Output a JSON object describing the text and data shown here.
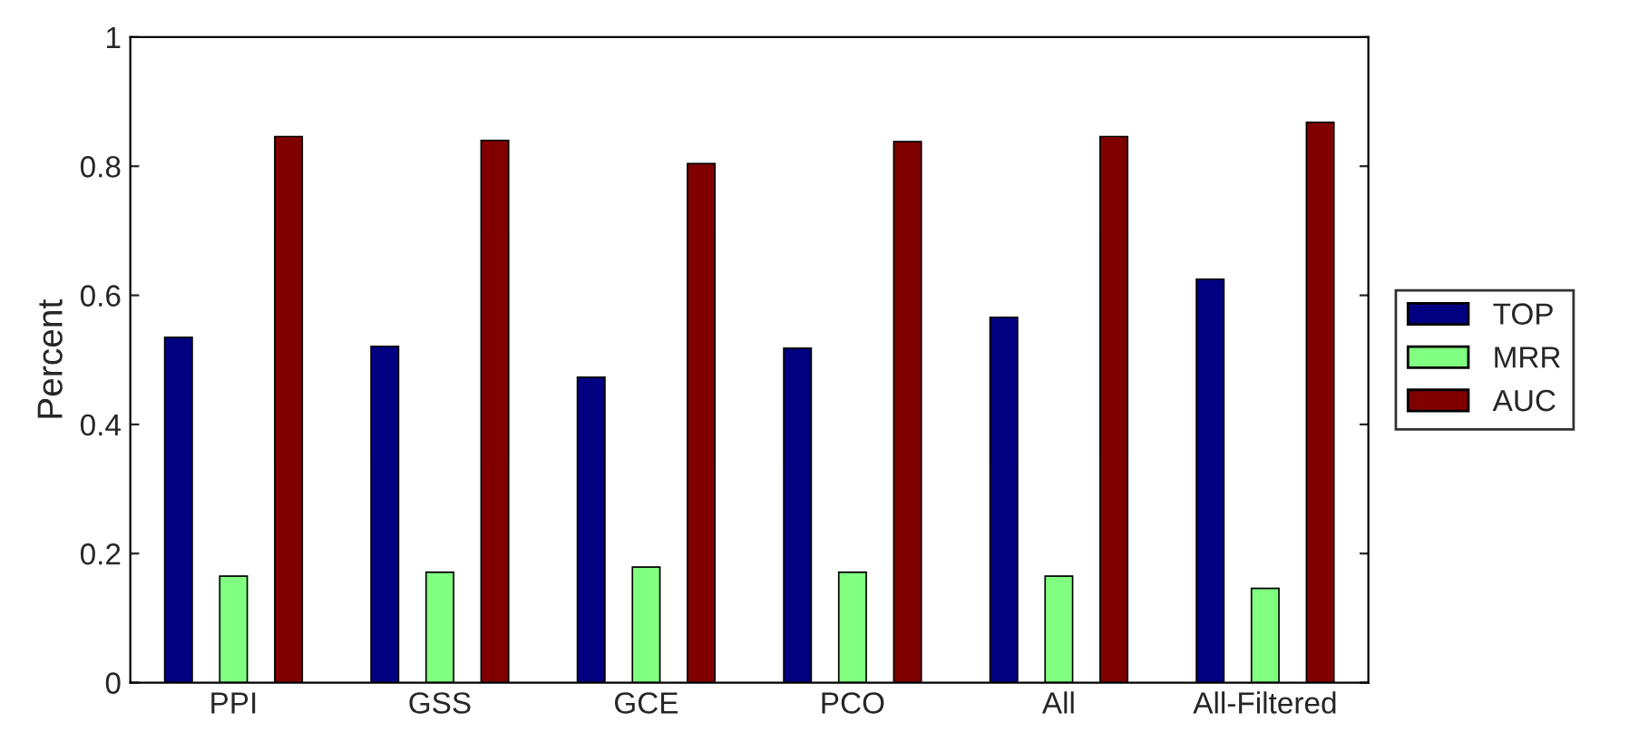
{
  "chart_data": {
    "type": "bar",
    "ylabel": "Percent",
    "categories": [
      "PPI",
      "GSS",
      "GCE",
      "PCO",
      "All",
      "All-Filtered"
    ],
    "series": [
      {
        "name": "TOP",
        "color": "#000080",
        "values": [
          0.535,
          0.521,
          0.473,
          0.518,
          0.566,
          0.625
        ]
      },
      {
        "name": "MRR",
        "color": "#80ff80",
        "values": [
          0.165,
          0.171,
          0.179,
          0.171,
          0.165,
          0.146
        ]
      },
      {
        "name": "AUC",
        "color": "#800000",
        "values": [
          0.846,
          0.84,
          0.804,
          0.838,
          0.846,
          0.868
        ]
      }
    ],
    "ylim": [
      0,
      1
    ],
    "yticks": [
      0,
      0.2,
      0.4,
      0.6,
      0.8,
      1
    ],
    "grid": false,
    "legend": "right"
  }
}
